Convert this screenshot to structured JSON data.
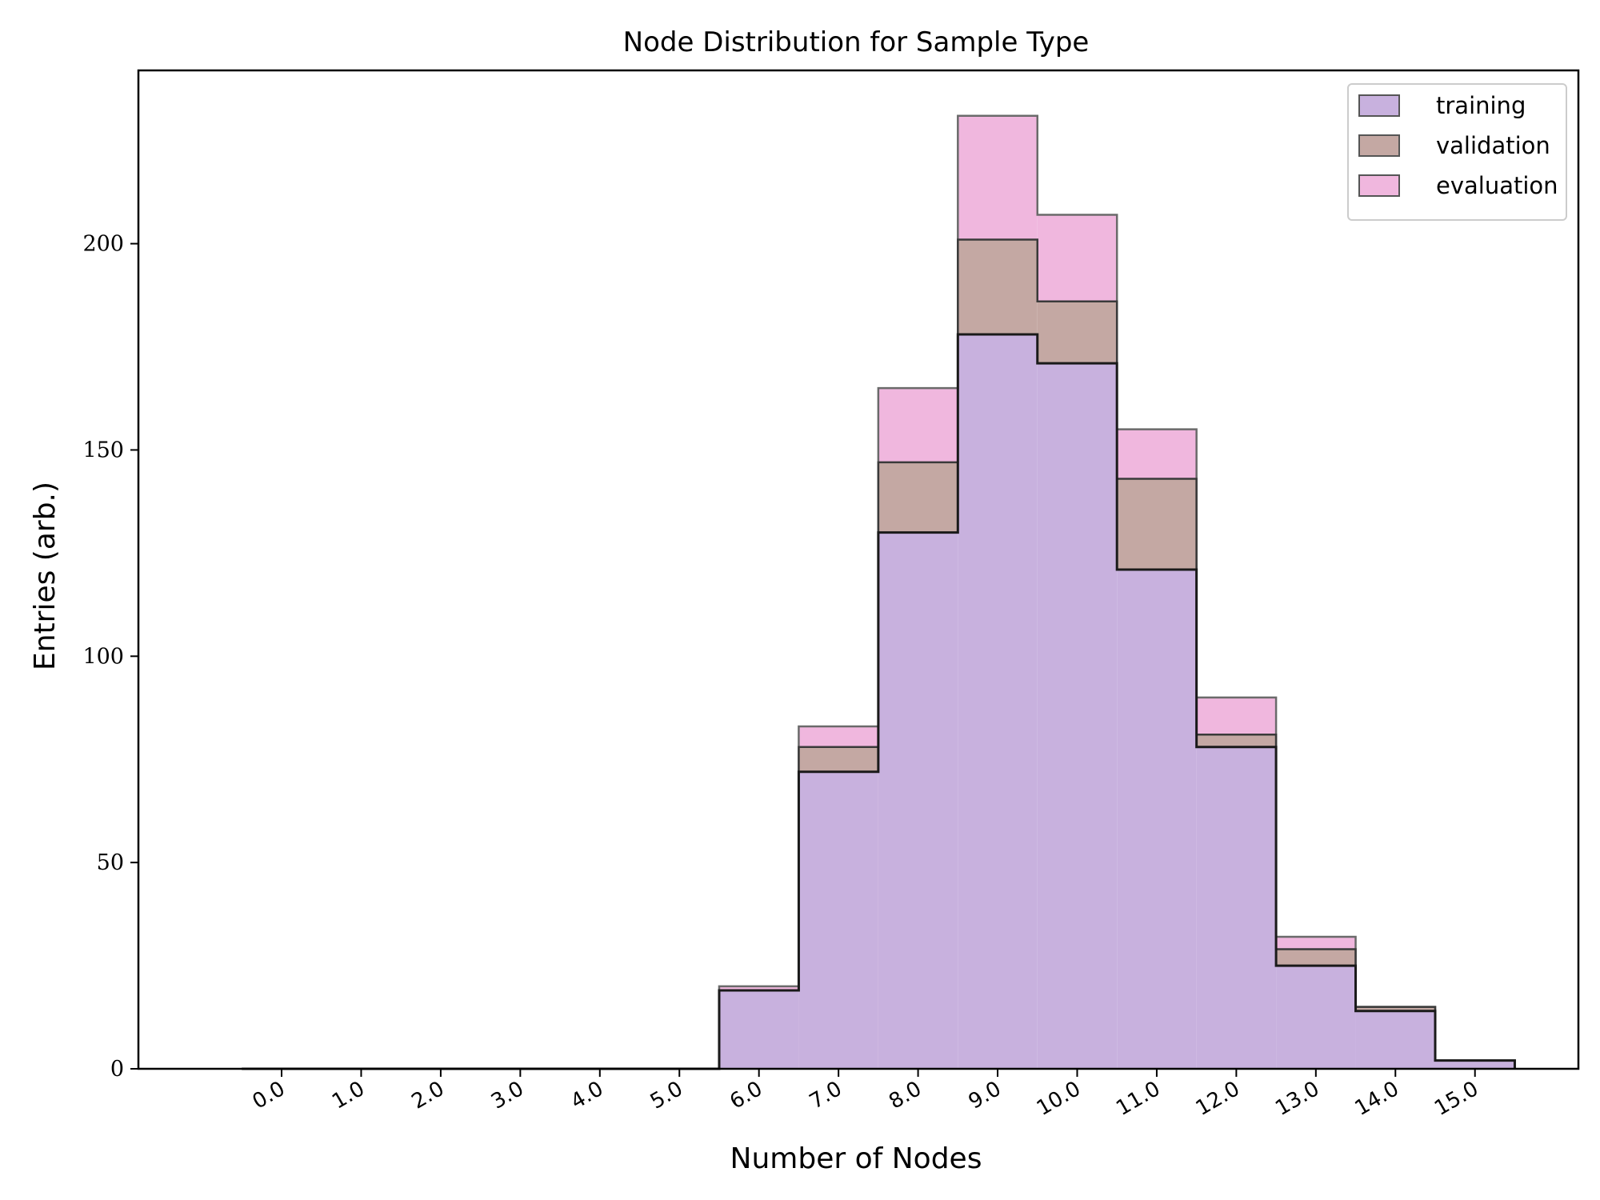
{
  "chart_data": {
    "type": "bar",
    "subtype": "stacked-step-histogram",
    "title": "Node Distribution for Sample Type",
    "xlabel": "Number of Nodes",
    "ylabel": "Entries (arb.)",
    "categories": [
      "0.0",
      "1.0",
      "2.0",
      "3.0",
      "4.0",
      "5.0",
      "6.0",
      "7.0",
      "8.0",
      "9.0",
      "10.0",
      "11.0",
      "12.0",
      "13.0",
      "14.0",
      "15.0"
    ],
    "bin_edges": [
      -0.5,
      0.5,
      1.5,
      2.5,
      3.5,
      4.5,
      5.5,
      6.5,
      7.5,
      8.5,
      9.5,
      10.5,
      11.5,
      12.5,
      13.5,
      14.5,
      15.5
    ],
    "stacked": true,
    "series": [
      {
        "name": "training",
        "color": "#c8b1de",
        "values": [
          0,
          0,
          0,
          0,
          0,
          0,
          19,
          72,
          130,
          178,
          171,
          121,
          78,
          25,
          14,
          2
        ]
      },
      {
        "name": "validation",
        "color": "#c4a8a3",
        "values": [
          0,
          0,
          0,
          0,
          0,
          0,
          0,
          6,
          17,
          23,
          15,
          22,
          3,
          4,
          1,
          0
        ]
      },
      {
        "name": "evaluation",
        "color": "#f0b7de",
        "values": [
          0,
          0,
          0,
          0,
          0,
          0,
          1,
          5,
          18,
          30,
          21,
          12,
          9,
          3,
          0,
          0
        ]
      }
    ],
    "ylim": [
      0,
      242
    ],
    "xlim": [
      -1.8,
      16.3
    ],
    "yticks": [
      0,
      50,
      100,
      150,
      200
    ],
    "grid": false,
    "legend_position": "top-right"
  }
}
